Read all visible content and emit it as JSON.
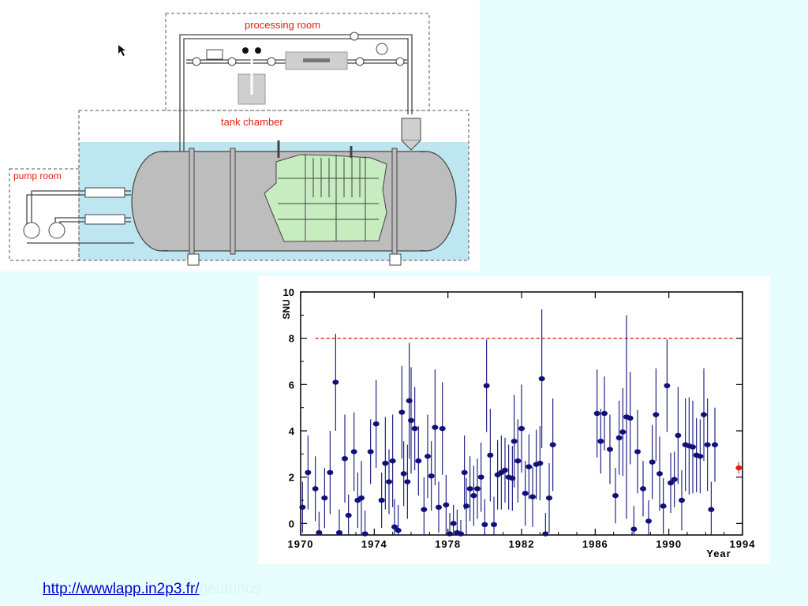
{
  "diagram": {
    "labels": {
      "processing_room": "processing room",
      "tank_chamber": "tank chamber",
      "pump_room": "pump room"
    },
    "colors": {
      "label_red": "#e02010",
      "water": "#bde6f0",
      "tank_gray": "#bdbdbd",
      "detector_green": "#c6ecbf"
    }
  },
  "chart_data": {
    "type": "scatter",
    "ylabel": "SNU",
    "xlabel": "Year",
    "xlim": [
      1970,
      1994
    ],
    "ylim": [
      -0.5,
      10
    ],
    "xticks": [
      "1970",
      "1974",
      "1978",
      "1982",
      "1986",
      "1990",
      "1994"
    ],
    "yticks": [
      "0",
      "2",
      "4",
      "6",
      "8",
      "10"
    ],
    "reference_line": {
      "y": 8,
      "style": "dashed",
      "color": "#e02010"
    },
    "marker_color": "#10107a",
    "series": [
      {
        "points": [
          [
            1970.1,
            0.7,
            1.1
          ],
          [
            1970.4,
            2.2,
            1.6
          ],
          [
            1970.8,
            1.5,
            1.4
          ],
          [
            1971.0,
            -0.4,
            0.9
          ],
          [
            1971.3,
            1.1,
            1.3
          ],
          [
            1971.6,
            2.2,
            1.8
          ],
          [
            1971.9,
            6.1,
            2.1
          ],
          [
            1972.1,
            -0.4,
            1.0
          ],
          [
            1972.4,
            2.8,
            1.9
          ],
          [
            1972.6,
            0.35,
            0.9
          ],
          [
            1972.9,
            3.1,
            1.7
          ],
          [
            1973.1,
            1.0,
            1.2
          ],
          [
            1973.3,
            1.1,
            1.6
          ],
          [
            1973.5,
            -0.45,
            1.0
          ],
          [
            1973.8,
            3.1,
            1.4
          ],
          [
            1974.1,
            4.3,
            1.9
          ],
          [
            1974.4,
            1.0,
            1.2
          ],
          [
            1974.6,
            2.6,
            2.0
          ],
          [
            1974.8,
            1.8,
            1.4
          ],
          [
            1975.0,
            2.7,
            2.0
          ],
          [
            1975.1,
            -0.15,
            1.2
          ],
          [
            1975.3,
            -0.3,
            1.1
          ],
          [
            1975.5,
            4.8,
            2.0
          ],
          [
            1975.6,
            2.15,
            1.4
          ],
          [
            1975.8,
            1.8,
            1.6
          ],
          [
            1975.9,
            5.3,
            2.5
          ],
          [
            1976.0,
            4.45,
            2.3
          ],
          [
            1976.2,
            4.1,
            1.8
          ],
          [
            1976.4,
            2.7,
            1.5
          ],
          [
            1976.7,
            0.6,
            1.4
          ],
          [
            1976.9,
            2.9,
            1.8
          ],
          [
            1977.1,
            2.05,
            1.5
          ],
          [
            1977.3,
            4.15,
            2.5
          ],
          [
            1977.5,
            0.7,
            1.1
          ],
          [
            1977.7,
            4.1,
            2.0
          ],
          [
            1977.9,
            0.8,
            1.3
          ],
          [
            1978.1,
            -0.45,
            0.9
          ],
          [
            1978.3,
            0.0,
            0.8
          ],
          [
            1978.5,
            -0.4,
            1.0
          ],
          [
            1978.7,
            -0.45,
            0.6
          ],
          [
            1978.9,
            2.2,
            1.6
          ],
          [
            1979.0,
            0.75,
            1.2
          ],
          [
            1979.2,
            1.5,
            1.4
          ],
          [
            1979.4,
            1.2,
            1.3
          ],
          [
            1979.6,
            1.5,
            1.3
          ],
          [
            1979.8,
            2.0,
            1.5
          ],
          [
            1980.0,
            -0.05,
            1.1
          ],
          [
            1980.1,
            5.95,
            2.0
          ],
          [
            1980.3,
            2.95,
            2.0
          ],
          [
            1980.5,
            -0.05,
            1.2
          ],
          [
            1980.7,
            2.1,
            1.5
          ],
          [
            1980.9,
            2.2,
            1.6
          ],
          [
            1981.1,
            2.3,
            1.4
          ],
          [
            1981.3,
            2.0,
            1.4
          ],
          [
            1981.5,
            1.95,
            1.4
          ],
          [
            1981.6,
            3.55,
            2.0
          ],
          [
            1981.8,
            2.7,
            1.8
          ],
          [
            1982.0,
            4.1,
            1.9
          ],
          [
            1982.2,
            1.3,
            1.4
          ],
          [
            1982.4,
            2.45,
            1.4
          ],
          [
            1982.6,
            1.15,
            1.3
          ],
          [
            1982.8,
            2.55,
            1.5
          ],
          [
            1983.0,
            2.6,
            1.6
          ],
          [
            1983.1,
            6.25,
            3.0
          ],
          [
            1983.3,
            -0.45,
            0.9
          ],
          [
            1983.5,
            1.1,
            1.5
          ],
          [
            1983.7,
            3.4,
            2.0
          ],
          [
            1986.1,
            4.75,
            1.9
          ],
          [
            1986.3,
            3.55,
            1.4
          ],
          [
            1986.5,
            4.75,
            1.6
          ],
          [
            1986.8,
            3.2,
            1.5
          ],
          [
            1987.1,
            1.2,
            1.2
          ],
          [
            1987.3,
            3.7,
            1.6
          ],
          [
            1987.5,
            3.95,
            1.9
          ],
          [
            1987.7,
            4.6,
            4.4
          ],
          [
            1987.9,
            4.55,
            2.0
          ],
          [
            1988.1,
            -0.25,
            1.0
          ],
          [
            1988.3,
            3.1,
            1.8
          ],
          [
            1988.6,
            1.5,
            1.2
          ],
          [
            1988.9,
            0.1,
            0.9
          ],
          [
            1989.1,
            2.65,
            1.6
          ],
          [
            1989.3,
            4.7,
            2.0
          ],
          [
            1989.5,
            2.15,
            1.6
          ],
          [
            1989.7,
            0.75,
            1.2
          ],
          [
            1989.9,
            5.95,
            2.0
          ],
          [
            1990.1,
            1.75,
            1.3
          ],
          [
            1990.3,
            1.9,
            1.2
          ],
          [
            1990.5,
            3.8,
            2.1
          ],
          [
            1990.7,
            1.0,
            1.3
          ],
          [
            1990.9,
            3.4,
            2.0
          ],
          [
            1991.1,
            3.35,
            2.1
          ],
          [
            1991.3,
            3.3,
            2.0
          ],
          [
            1991.5,
            2.95,
            1.6
          ],
          [
            1991.7,
            2.9,
            1.6
          ],
          [
            1991.9,
            4.7,
            2.0
          ],
          [
            1992.1,
            3.4,
            2.0
          ],
          [
            1992.3,
            0.6,
            1.2
          ],
          [
            1992.5,
            3.4,
            1.6
          ]
        ]
      },
      {
        "points": [
          [
            1993.8,
            2.4,
            0.25
          ]
        ],
        "color": "#e02010"
      }
    ]
  },
  "footer": {
    "link_text": "http://wwwlapp.in2p3.fr/",
    "faded_text": "neutrinos"
  }
}
